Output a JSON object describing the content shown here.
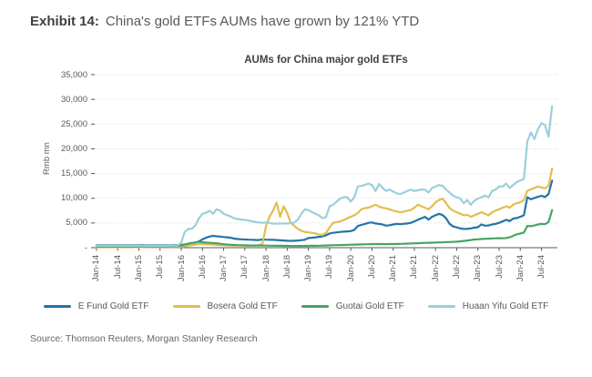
{
  "exhibit": {
    "label": "Exhibit 14:",
    "title": "China's gold ETFs AUMs have grown by 121% YTD"
  },
  "source": "Source: Thomson Reuters, Morgan Stanley Research",
  "colors": {
    "axis": "#595959",
    "grid": "#d8d8d8",
    "efund": "#2474a6",
    "bosera": "#e4bc51",
    "guotai": "#48a462",
    "huaan": "#9bcfdb"
  },
  "chart_data": {
    "type": "line",
    "title": "AUMs for China major gold ETFs",
    "xlabel": "",
    "ylabel": "Rmb mn",
    "ylim": [
      0,
      35000
    ],
    "grid": "horizontal-dotted",
    "legend_position": "bottom",
    "x_unit": "month",
    "x_start": "Jan-14",
    "x_end": "Oct-24",
    "x_months_total": 131,
    "x_tick_months": [
      0,
      6,
      12,
      18,
      24,
      30,
      36,
      42,
      48,
      54,
      60,
      66,
      72,
      78,
      84,
      90,
      96,
      102,
      108,
      114,
      120,
      126
    ],
    "x_tick_labels": [
      "Jan-14",
      "Jul-14",
      "Jan-15",
      "Jul-15",
      "Jan-16",
      "Jul-16",
      "Jan-17",
      "Jul-17",
      "Jan-18",
      "Jul-18",
      "Jan-19",
      "Jul-19",
      "Jan-20",
      "Jul-20",
      "Jan-21",
      "Jul-21",
      "Jan-22",
      "Jul-22",
      "Jan-23",
      "Jul-23",
      "Jan-24",
      "Jul-24"
    ],
    "y_tick_values": [
      0,
      5000,
      10000,
      15000,
      20000,
      25000,
      30000,
      35000
    ],
    "y_tick_labels": [
      "-",
      "5,000",
      "10,000",
      "15,000",
      "20,000",
      "25,000",
      "30,000",
      "35,000"
    ],
    "series": [
      {
        "name": "E Fund Gold ETF",
        "color": "#2474a6",
        "values": [
          500,
          495,
          498,
          500,
          503,
          500,
          497,
          500,
          503,
          500,
          497,
          500,
          503,
          507,
          500,
          497,
          500,
          503,
          500,
          497,
          500,
          505,
          510,
          520,
          560,
          650,
          800,
          950,
          1050,
          1250,
          1700,
          2000,
          2250,
          2390,
          2300,
          2250,
          2150,
          2100,
          2000,
          1850,
          1750,
          1700,
          1650,
          1620,
          1600,
          1570,
          1550,
          1650,
          1630,
          1600,
          1580,
          1550,
          1500,
          1450,
          1400,
          1380,
          1400,
          1450,
          1520,
          1600,
          1950,
          2000,
          2100,
          2200,
          2300,
          2500,
          2870,
          3000,
          3100,
          3180,
          3250,
          3300,
          3350,
          3600,
          4410,
          4600,
          4800,
          5020,
          5100,
          4900,
          4800,
          4700,
          4450,
          4550,
          4700,
          4800,
          4750,
          4820,
          4900,
          5020,
          5330,
          5640,
          5950,
          6250,
          5700,
          6250,
          6560,
          6860,
          6600,
          5950,
          4800,
          4300,
          4110,
          3900,
          3790,
          3820,
          3900,
          4050,
          4150,
          4700,
          4450,
          4500,
          4700,
          4800,
          5020,
          5330,
          5640,
          5380,
          5900,
          6000,
          6250,
          6560,
          10200,
          9800,
          10050,
          10300,
          10500,
          10250,
          10850,
          13600
        ]
      },
      {
        "name": "Bosera Gold ETF",
        "color": "#e4bc51",
        "values": [
          80,
          82,
          84,
          86,
          88,
          90,
          92,
          94,
          96,
          98,
          100,
          105,
          108,
          112,
          116,
          120,
          125,
          130,
          135,
          140,
          148,
          155,
          162,
          175,
          210,
          280,
          400,
          500,
          600,
          700,
          730,
          700,
          650,
          600,
          550,
          500,
          480,
          460,
          445,
          430,
          420,
          410,
          400,
          400,
          420,
          450,
          560,
          800,
          4400,
          6300,
          7500,
          9120,
          6250,
          8390,
          7000,
          5020,
          4400,
          3790,
          3400,
          3180,
          3100,
          3000,
          2870,
          2650,
          2570,
          3000,
          4110,
          5020,
          5150,
          5330,
          5600,
          5950,
          6250,
          6560,
          7000,
          7780,
          8000,
          8080,
          8390,
          8700,
          8300,
          8080,
          7960,
          7780,
          7470,
          7320,
          7170,
          7300,
          7470,
          7620,
          8080,
          8700,
          8390,
          8080,
          7780,
          8390,
          9190,
          9630,
          9930,
          9010,
          8000,
          7470,
          7170,
          6860,
          6560,
          6660,
          6250,
          6560,
          6860,
          7170,
          6860,
          6560,
          7170,
          7470,
          7780,
          8080,
          8390,
          8080,
          8700,
          9010,
          9190,
          9630,
          11500,
          11800,
          12060,
          12370,
          12150,
          12000,
          12500,
          16000
        ]
      },
      {
        "name": "Guotai Gold ETF",
        "color": "#48a462",
        "values": [
          250,
          252,
          254,
          255,
          257,
          258,
          260,
          259,
          258,
          260,
          262,
          265,
          268,
          270,
          272,
          275,
          278,
          280,
          284,
          287,
          290,
          294,
          298,
          320,
          420,
          620,
          820,
          950,
          1030,
          1160,
          1100,
          1030,
          1000,
          950,
          900,
          800,
          700,
          650,
          590,
          550,
          520,
          500,
          480,
          460,
          450,
          440,
          432,
          428,
          420,
          412,
          405,
          395,
          385,
          375,
          365,
          358,
          352,
          350,
          354,
          360,
          370,
          380,
          390,
          400,
          420,
          448,
          478,
          500,
          520,
          540,
          560,
          580,
          600,
          620,
          640,
          660,
          680,
          700,
          718,
          730,
          740,
          732,
          722,
          730,
          742,
          760,
          780,
          800,
          822,
          850,
          878,
          908,
          938,
          968,
          1000,
          1012,
          1030,
          1060,
          1090,
          1120,
          1150,
          1180,
          1220,
          1280,
          1360,
          1450,
          1550,
          1650,
          1700,
          1750,
          1800,
          1830,
          1870,
          1900,
          1930,
          1900,
          1950,
          2100,
          2400,
          2700,
          2870,
          3050,
          4410,
          4350,
          4500,
          4700,
          4830,
          4750,
          5200,
          7600
        ]
      },
      {
        "name": "Huaan Yifu Gold ETF",
        "color": "#9bcfdb",
        "values": [
          400,
          404,
          400,
          397,
          400,
          404,
          408,
          404,
          400,
          398,
          400,
          404,
          408,
          412,
          416,
          412,
          408,
          404,
          400,
          404,
          410,
          415,
          420,
          450,
          1030,
          3180,
          3790,
          3820,
          4500,
          5950,
          6860,
          7050,
          7470,
          6860,
          7780,
          7500,
          6860,
          6600,
          6300,
          5950,
          5800,
          5700,
          5640,
          5500,
          5350,
          5200,
          5100,
          5020,
          5100,
          5000,
          4890,
          4850,
          4890,
          4920,
          4890,
          4950,
          5100,
          5670,
          6860,
          7780,
          7600,
          7200,
          6860,
          6540,
          5950,
          6200,
          8390,
          8700,
          9300,
          9930,
          10220,
          10220,
          9300,
          10200,
          12370,
          12500,
          12700,
          12980,
          12680,
          11450,
          12900,
          12100,
          11500,
          11760,
          11340,
          11000,
          10840,
          11150,
          11450,
          11760,
          11450,
          11600,
          11760,
          11760,
          11150,
          12060,
          12370,
          12680,
          12500,
          11760,
          11150,
          10500,
          10200,
          9930,
          9010,
          9630,
          8700,
          9500,
          9930,
          10200,
          10530,
          10200,
          11450,
          11760,
          12370,
          12370,
          12980,
          12060,
          12700,
          13290,
          13590,
          13900,
          21500,
          23300,
          22000,
          24000,
          25200,
          24800,
          22500,
          28600
        ]
      }
    ]
  }
}
